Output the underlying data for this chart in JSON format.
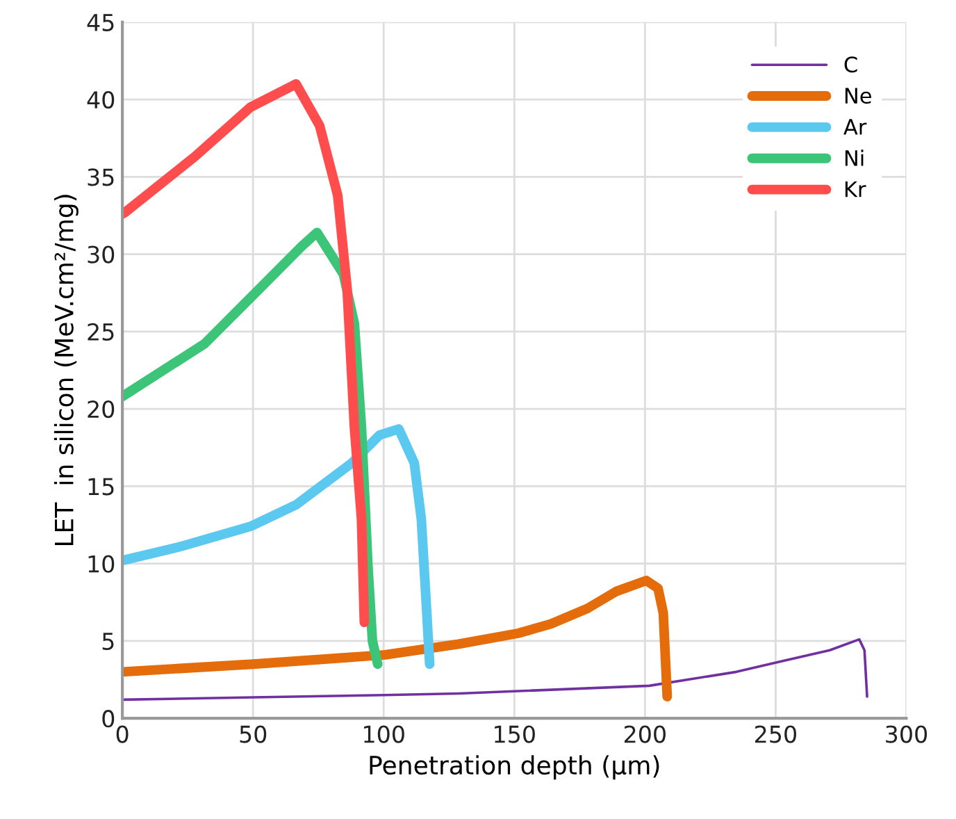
{
  "chart_data": {
    "type": "line",
    "xlabel": "Penetration depth (µm)",
    "ylabel": "LET  in silicon (MeV.cm²/mg)",
    "xlim": [
      0,
      300
    ],
    "ylim": [
      0,
      45
    ],
    "xticks": [
      0,
      50,
      100,
      150,
      200,
      250,
      300
    ],
    "yticks": [
      0,
      5,
      10,
      15,
      20,
      25,
      30,
      35,
      40,
      45
    ],
    "grid": true,
    "legend": "top right",
    "series": [
      {
        "name": "C",
        "color": "#7030a0",
        "x": [
          0,
          50,
          100,
          128.7,
          201.6,
          235,
          252.7,
          270.7,
          282,
          284,
          285
        ],
        "values": [
          1.2,
          1.35,
          1.5,
          1.6,
          2.1,
          3.0,
          3.7,
          4.4,
          5.1,
          4.4,
          1.4
        ]
      },
      {
        "name": "Ne",
        "color": "#e46c0a",
        "x": [
          0,
          50,
          100.5,
          128.7,
          151.6,
          164,
          178,
          189,
          200.5,
          205,
          207,
          208.5
        ],
        "values": [
          3.0,
          3.5,
          4.1,
          4.8,
          5.5,
          6.1,
          7.1,
          8.2,
          8.9,
          8.4,
          6.8,
          1.4
        ]
      },
      {
        "name": "Ar",
        "color": "#5bc8f0",
        "x": [
          0,
          22.3,
          49,
          66.5,
          87.8,
          98.4,
          105.8,
          111.7,
          114.4,
          116.5,
          117.6
        ],
        "values": [
          10.2,
          11.1,
          12.4,
          13.8,
          16.5,
          18.3,
          18.7,
          16.5,
          12.9,
          6.8,
          3.5
        ]
      },
      {
        "name": "Ni",
        "color": "#3cc479",
        "x": [
          0,
          31.4,
          52.7,
          68.6,
          74.5,
          84.6,
          88.8,
          91.5,
          94,
          95.7,
          97.7
        ],
        "values": [
          20.8,
          24.2,
          27.8,
          30.5,
          31.4,
          28.7,
          25.5,
          18.8,
          9.8,
          5.0,
          3.5
        ]
      },
      {
        "name": "Kr",
        "color": "#ff4d4d",
        "x": [
          0,
          1,
          27.7,
          49,
          66.5,
          75.5,
          82.4,
          86,
          88.8,
          91.5,
          92.6
        ],
        "values": [
          32.6,
          32.7,
          36.3,
          39.5,
          41.0,
          38.3,
          33.8,
          27.8,
          18.8,
          12.9,
          6.2
        ]
      }
    ]
  }
}
